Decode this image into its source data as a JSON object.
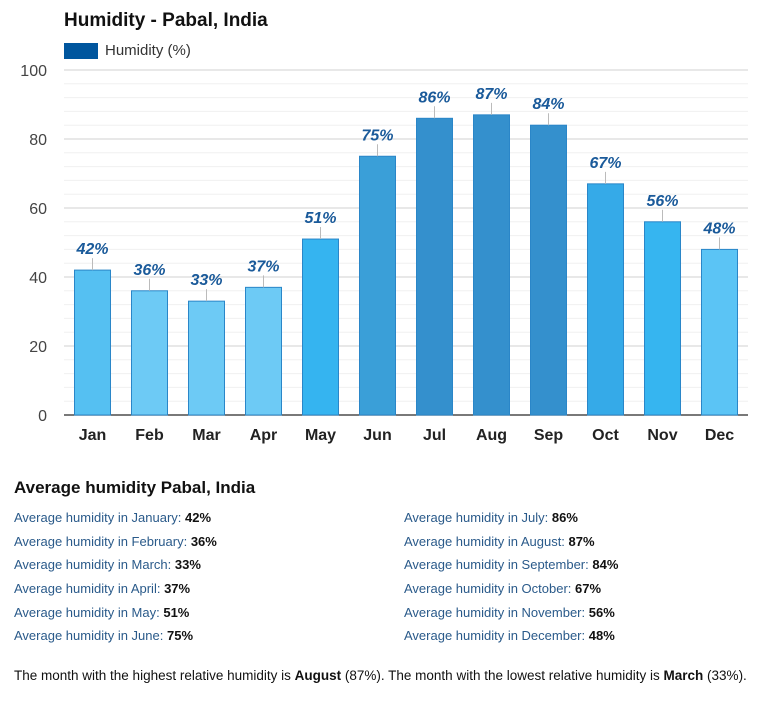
{
  "chart_data": {
    "type": "bar",
    "title": "Humidity - Pabal, India",
    "legend": "Humidity (%)",
    "categories": [
      "Jan",
      "Feb",
      "Mar",
      "Apr",
      "May",
      "Jun",
      "Jul",
      "Aug",
      "Sep",
      "Oct",
      "Nov",
      "Dec"
    ],
    "values": [
      42,
      36,
      33,
      37,
      51,
      75,
      86,
      87,
      84,
      67,
      56,
      48
    ],
    "labels": [
      "42%",
      "36%",
      "33%",
      "37%",
      "51%",
      "75%",
      "86%",
      "87%",
      "84%",
      "67%",
      "56%",
      "48%"
    ],
    "colors": [
      "#55c0f2",
      "#6dcaf5",
      "#6dcaf5",
      "#6dcaf5",
      "#35b4f0",
      "#3a9fd8",
      "#3490cd",
      "#3490cd",
      "#3490cd",
      "#35aae8",
      "#36b5f0",
      "#5bc4f5"
    ],
    "yticks": [
      0,
      20,
      40,
      60,
      80,
      100
    ],
    "ylim": [
      0,
      100
    ],
    "legend_color": "#00569e",
    "label_color": "#1a5a9a"
  },
  "section_title": "Average humidity Pabal, India",
  "averages_left": [
    {
      "label": "Average humidity in January:",
      "value": "42%"
    },
    {
      "label": "Average humidity in February:",
      "value": "36%"
    },
    {
      "label": "Average humidity in March:",
      "value": "33%"
    },
    {
      "label": "Average humidity in April:",
      "value": "37%"
    },
    {
      "label": "Average humidity in May:",
      "value": "51%"
    },
    {
      "label": "Average humidity in June:",
      "value": "75%"
    }
  ],
  "averages_right": [
    {
      "label": "Average humidity in July:",
      "value": "86%"
    },
    {
      "label": "Average humidity in August:",
      "value": "87%"
    },
    {
      "label": "Average humidity in September:",
      "value": "84%"
    },
    {
      "label": "Average humidity in October:",
      "value": "67%"
    },
    {
      "label": "Average humidity in November:",
      "value": "56%"
    },
    {
      "label": "Average humidity in December:",
      "value": "48%"
    }
  ],
  "summary": {
    "p1": "The month with the highest relative humidity is ",
    "high": "August",
    "p2": " (87%). The month with the lowest relative humidity is ",
    "low": "March",
    "p3": " (33%)."
  }
}
